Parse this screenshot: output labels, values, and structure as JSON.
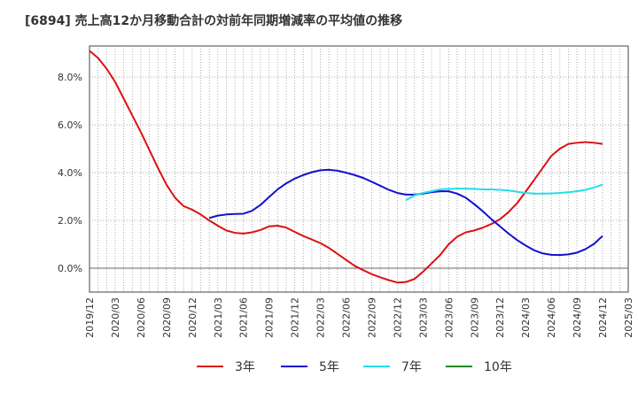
{
  "chart_data": {
    "type": "line",
    "title": "[6894]  売上高12か月移動合計の対前年同期増減率の平均値の推移",
    "xlabel": "",
    "ylabel": "",
    "ylim": [
      -1.0,
      9.3
    ],
    "y_ticks": [
      0,
      2,
      4,
      6,
      8
    ],
    "y_tick_labels": [
      "0.0%",
      "2.0%",
      "4.0%",
      "6.0%",
      "8.0%"
    ],
    "x_tick_labels": [
      "2019/12",
      "2020/03",
      "2020/06",
      "2020/09",
      "2020/12",
      "2021/03",
      "2021/06",
      "2021/09",
      "2021/12",
      "2022/03",
      "2022/06",
      "2022/09",
      "2022/12",
      "2023/03",
      "2023/06",
      "2023/09",
      "2023/12",
      "2024/03",
      "2024/06",
      "2024/09",
      "2024/12",
      "2025/03"
    ],
    "grid": true,
    "legend_position": "bottom",
    "series": [
      {
        "name": "3年",
        "color": "#dd1111",
        "points": [
          [
            "2019/12",
            9.1
          ],
          [
            "2020/01",
            8.8
          ],
          [
            "2020/02",
            8.35
          ],
          [
            "2020/03",
            7.8
          ],
          [
            "2020/04",
            7.1
          ],
          [
            "2020/05",
            6.4
          ],
          [
            "2020/06",
            5.7
          ],
          [
            "2020/07",
            4.95
          ],
          [
            "2020/08",
            4.2
          ],
          [
            "2020/09",
            3.5
          ],
          [
            "2020/10",
            2.95
          ],
          [
            "2020/11",
            2.6
          ],
          [
            "2020/12",
            2.45
          ],
          [
            "2021/01",
            2.25
          ],
          [
            "2021/02",
            2.0
          ],
          [
            "2021/03",
            1.78
          ],
          [
            "2021/04",
            1.58
          ],
          [
            "2021/05",
            1.48
          ],
          [
            "2021/06",
            1.45
          ],
          [
            "2021/07",
            1.5
          ],
          [
            "2021/08",
            1.6
          ],
          [
            "2021/09",
            1.75
          ],
          [
            "2021/10",
            1.78
          ],
          [
            "2021/11",
            1.7
          ],
          [
            "2021/12",
            1.52
          ],
          [
            "2022/01",
            1.35
          ],
          [
            "2022/02",
            1.2
          ],
          [
            "2022/03",
            1.05
          ],
          [
            "2022/04",
            0.85
          ],
          [
            "2022/05",
            0.6
          ],
          [
            "2022/06",
            0.35
          ],
          [
            "2022/07",
            0.1
          ],
          [
            "2022/08",
            -0.08
          ],
          [
            "2022/09",
            -0.25
          ],
          [
            "2022/10",
            -0.38
          ],
          [
            "2022/11",
            -0.5
          ],
          [
            "2022/12",
            -0.6
          ],
          [
            "2023/01",
            -0.58
          ],
          [
            "2023/02",
            -0.45
          ],
          [
            "2023/03",
            -0.15
          ],
          [
            "2023/04",
            0.2
          ],
          [
            "2023/05",
            0.55
          ],
          [
            "2023/06",
            1.0
          ],
          [
            "2023/07",
            1.32
          ],
          [
            "2023/08",
            1.5
          ],
          [
            "2023/09",
            1.58
          ],
          [
            "2023/10",
            1.7
          ],
          [
            "2023/11",
            1.85
          ],
          [
            "2023/12",
            2.05
          ],
          [
            "2024/01",
            2.35
          ],
          [
            "2024/02",
            2.72
          ],
          [
            "2024/03",
            3.2
          ],
          [
            "2024/04",
            3.7
          ],
          [
            "2024/05",
            4.2
          ],
          [
            "2024/06",
            4.7
          ],
          [
            "2024/07",
            5.0
          ],
          [
            "2024/08",
            5.2
          ],
          [
            "2024/09",
            5.25
          ],
          [
            "2024/10",
            5.28
          ],
          [
            "2024/11",
            5.25
          ],
          [
            "2024/12",
            5.2
          ]
        ]
      },
      {
        "name": "5年",
        "color": "#1111cc",
        "points": [
          [
            "2021/02",
            2.1
          ],
          [
            "2021/03",
            2.2
          ],
          [
            "2021/04",
            2.25
          ],
          [
            "2021/05",
            2.27
          ],
          [
            "2021/06",
            2.28
          ],
          [
            "2021/07",
            2.4
          ],
          [
            "2021/08",
            2.65
          ],
          [
            "2021/09",
            2.98
          ],
          [
            "2021/10",
            3.3
          ],
          [
            "2021/11",
            3.55
          ],
          [
            "2021/12",
            3.75
          ],
          [
            "2022/01",
            3.9
          ],
          [
            "2022/02",
            4.02
          ],
          [
            "2022/03",
            4.1
          ],
          [
            "2022/04",
            4.12
          ],
          [
            "2022/05",
            4.08
          ],
          [
            "2022/06",
            4.0
          ],
          [
            "2022/07",
            3.9
          ],
          [
            "2022/08",
            3.78
          ],
          [
            "2022/09",
            3.62
          ],
          [
            "2022/10",
            3.45
          ],
          [
            "2022/11",
            3.28
          ],
          [
            "2022/12",
            3.15
          ],
          [
            "2023/01",
            3.08
          ],
          [
            "2023/02",
            3.08
          ],
          [
            "2023/03",
            3.12
          ],
          [
            "2023/04",
            3.18
          ],
          [
            "2023/05",
            3.22
          ],
          [
            "2023/06",
            3.22
          ],
          [
            "2023/07",
            3.12
          ],
          [
            "2023/08",
            2.95
          ],
          [
            "2023/09",
            2.68
          ],
          [
            "2023/10",
            2.38
          ],
          [
            "2023/11",
            2.05
          ],
          [
            "2023/12",
            1.75
          ],
          [
            "2024/01",
            1.45
          ],
          [
            "2024/02",
            1.18
          ],
          [
            "2024/03",
            0.95
          ],
          [
            "2024/04",
            0.75
          ],
          [
            "2024/05",
            0.62
          ],
          [
            "2024/06",
            0.56
          ],
          [
            "2024/07",
            0.55
          ],
          [
            "2024/08",
            0.58
          ],
          [
            "2024/09",
            0.65
          ],
          [
            "2024/10",
            0.8
          ],
          [
            "2024/11",
            1.02
          ],
          [
            "2024/12",
            1.35
          ]
        ]
      },
      {
        "name": "7年",
        "color": "#22ddee",
        "points": [
          [
            "2023/01",
            2.85
          ],
          [
            "2023/02",
            3.05
          ],
          [
            "2023/03",
            3.15
          ],
          [
            "2023/04",
            3.22
          ],
          [
            "2023/05",
            3.3
          ],
          [
            "2023/06",
            3.32
          ],
          [
            "2023/07",
            3.33
          ],
          [
            "2023/08",
            3.33
          ],
          [
            "2023/09",
            3.32
          ],
          [
            "2023/10",
            3.3
          ],
          [
            "2023/11",
            3.3
          ],
          [
            "2023/12",
            3.28
          ],
          [
            "2024/01",
            3.25
          ],
          [
            "2024/02",
            3.2
          ],
          [
            "2024/03",
            3.15
          ],
          [
            "2024/04",
            3.12
          ],
          [
            "2024/05",
            3.12
          ],
          [
            "2024/06",
            3.13
          ],
          [
            "2024/07",
            3.15
          ],
          [
            "2024/08",
            3.18
          ],
          [
            "2024/09",
            3.22
          ],
          [
            "2024/10",
            3.28
          ],
          [
            "2024/11",
            3.38
          ],
          [
            "2024/12",
            3.5
          ]
        ]
      },
      {
        "name": "10年",
        "color": "#228822",
        "points": []
      }
    ]
  }
}
